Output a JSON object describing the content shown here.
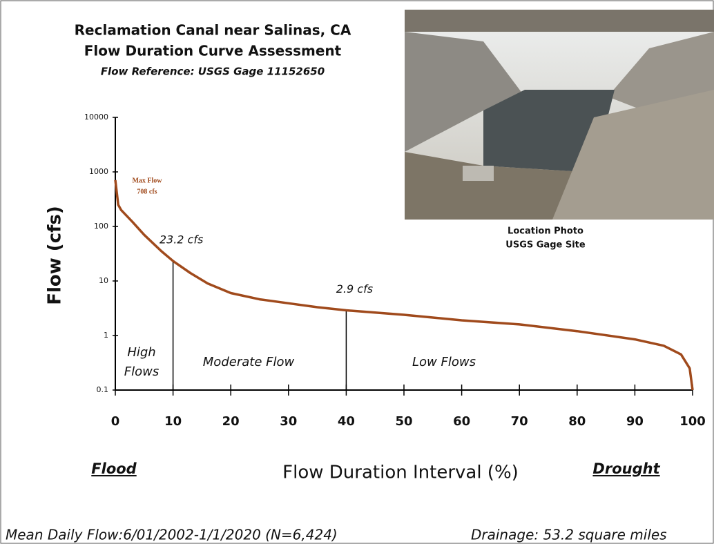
{
  "chart_data": {
    "type": "line",
    "title": [
      "Reclamation Canal near Salinas, CA",
      "Flow Duration Curve Assessment"
    ],
    "subtitle": "Flow Reference: USGS Gage  11152650",
    "x_label": "Flow Duration Interval (%)",
    "y_label": "Flow (cfs)",
    "x_ends": [
      "Flood",
      "Drought"
    ],
    "footer": [
      "Mean Daily Flow:6/01/2002-1/1/2020 (N=6,424)",
      "Drainage: 53.2 square miles"
    ],
    "photo_caption": [
      "Location Photo",
      "USGS Gage Site"
    ],
    "xlim": [
      0,
      100
    ],
    "ylim": [
      0.1,
      10000
    ],
    "log_y": true,
    "xticks": [
      0,
      10,
      20,
      30,
      40,
      50,
      60,
      70,
      80,
      90,
      100
    ],
    "yticks": [
      0.1,
      1,
      10,
      100,
      1000,
      10000
    ],
    "color": "#a04a1c",
    "x": [
      0,
      0.5,
      1,
      3,
      5,
      8,
      10,
      13,
      16,
      20,
      25,
      30,
      35,
      40,
      50,
      60,
      70,
      80,
      90,
      95,
      98,
      99.5,
      100
    ],
    "values": [
      708,
      250,
      200,
      120,
      70,
      35,
      23.2,
      14,
      9,
      6,
      4.6,
      3.9,
      3.3,
      2.9,
      2.4,
      1.9,
      1.6,
      1.2,
      0.85,
      0.65,
      0.45,
      0.25,
      0.1
    ],
    "max_flow": {
      "label": "Max Flow",
      "value": 708,
      "value_label": "708 cfs"
    },
    "markers": [
      {
        "x": 10,
        "value": 23.2,
        "label": "23.2 cfs"
      },
      {
        "x": 40,
        "value": 2.9,
        "label": "2.9 cfs"
      }
    ],
    "zones": [
      [
        "High",
        "Flows"
      ],
      [
        "Moderate Flow"
      ],
      [
        "Low Flows"
      ]
    ]
  }
}
